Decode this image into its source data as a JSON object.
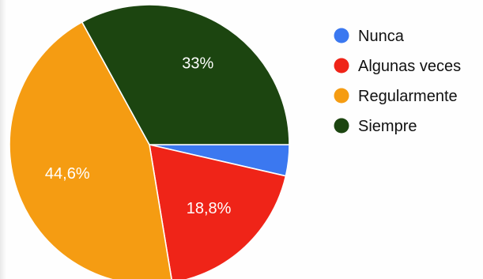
{
  "chart_data": {
    "type": "pie",
    "start_angle_deg": 90,
    "direction": "clockwise",
    "slices": [
      {
        "label": "Nunca",
        "value": 3.6,
        "color": "#3b78f0",
        "label_text": ""
      },
      {
        "label": "Algunas veces",
        "value": 18.8,
        "color": "#ef2418",
        "label_text": "18,8%"
      },
      {
        "label": "Regularmente",
        "value": 44.6,
        "color": "#f59c12",
        "label_text": "44,6%"
      },
      {
        "label": "Siempre",
        "value": 33.0,
        "color": "#1c4510",
        "label_text": "33%"
      }
    ],
    "label_colors": {
      "Nunca": "#ffffff",
      "Algunas veces": "#ffffff",
      "Regularmente": "#ffffff",
      "Siempre": "#ffffff"
    },
    "legend": {
      "position": "right",
      "items": [
        "Nunca",
        "Algunas veces",
        "Regularmente",
        "Siempre"
      ]
    }
  }
}
